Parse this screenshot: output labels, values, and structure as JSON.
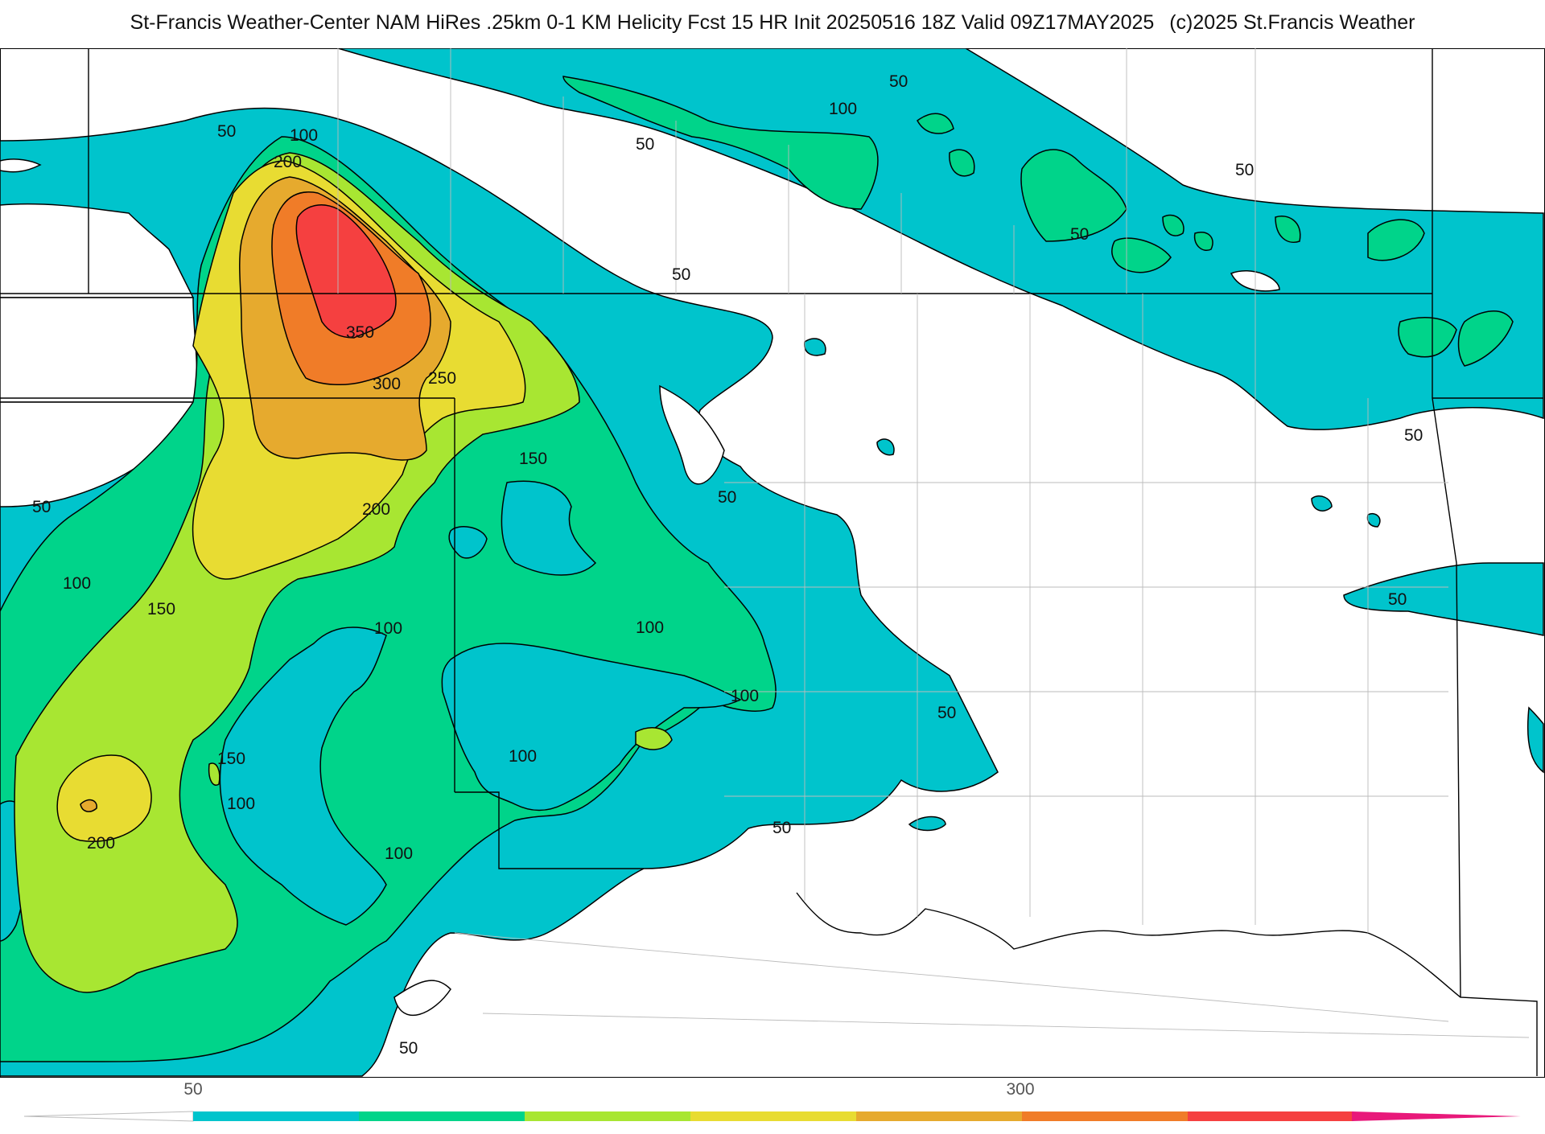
{
  "header": {
    "title": "St-Francis Weather-Center NAM HiRes .25km 0-1 KM Helicity Fcst 15 HR Init 20250516 18Z  Valid 09Z17MAY2025",
    "copyright": "(c)2025 St.Francis Weather"
  },
  "contour_labels": {
    "c50": "50",
    "c100": "100",
    "c150": "150",
    "c200": "200",
    "c250": "250",
    "c300": "300",
    "c350": "350"
  },
  "colorbar": {
    "tick_labels": [
      "50",
      "300"
    ],
    "colors": [
      "#00c4cc",
      "#00d48a",
      "#a8e632",
      "#e8dc32",
      "#e6aa2e",
      "#f07c28",
      "#f54040",
      "#e8197a"
    ]
  }
}
